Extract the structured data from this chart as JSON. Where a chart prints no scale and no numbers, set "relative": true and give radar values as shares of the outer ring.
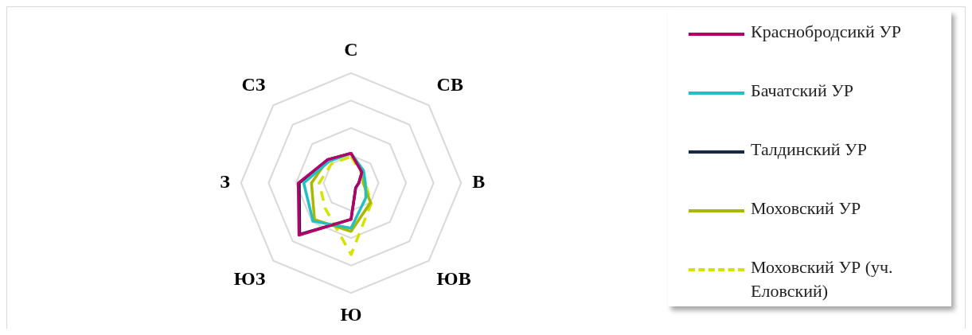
{
  "chart_data": {
    "type": "radar",
    "relative": true,
    "categories": [
      "С",
      "СВ",
      "В",
      "ЮВ",
      "Ю",
      "ЮЗ",
      "З",
      "СЗ"
    ],
    "series": [
      {
        "name": "Краснобродсикй УР",
        "color": "#b5006a",
        "values": [
          0.27,
          0.14,
          0.07,
          0.06,
          0.33,
          0.67,
          0.48,
          0.3
        ]
      },
      {
        "name": "Бачатский УР",
        "color": "#22c0c0",
        "values": [
          0.27,
          0.16,
          0.13,
          0.19,
          0.41,
          0.49,
          0.43,
          0.28
        ]
      },
      {
        "name": "Талдинский УР",
        "color": "#17294a",
        "values": [
          0.27,
          0.14,
          0.07,
          0.06,
          0.33,
          0.66,
          0.47,
          0.3
        ]
      },
      {
        "name": "Моховский УР",
        "color": "#a8b800",
        "values": [
          0.27,
          0.15,
          0.11,
          0.25,
          0.44,
          0.47,
          0.36,
          0.3
        ]
      },
      {
        "name": "Моховский УР (уч. Еловский)",
        "color": "#d4e400",
        "line_style": "dashed",
        "values": [
          0.24,
          0.13,
          0.13,
          0.26,
          0.65,
          0.33,
          0.29,
          0.25
        ]
      }
    ],
    "grid": true,
    "legend": "right",
    "marker": "none"
  }
}
